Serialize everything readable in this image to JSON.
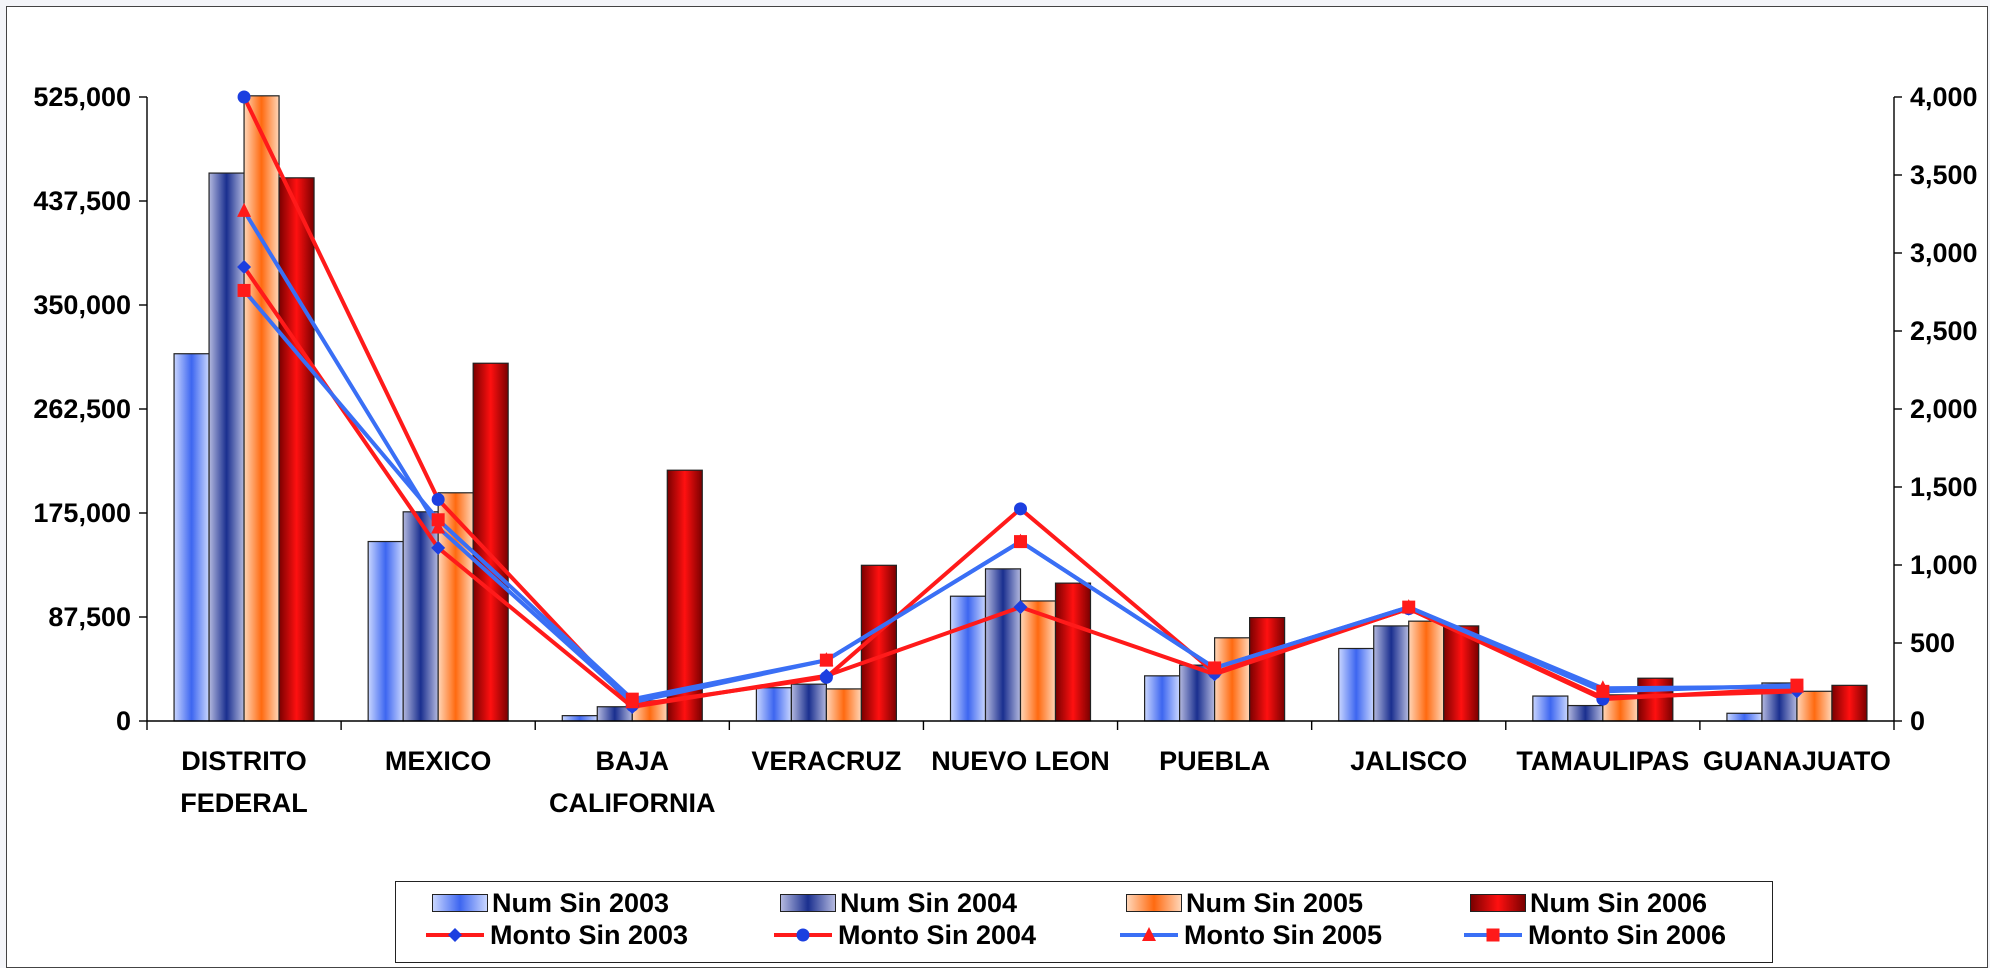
{
  "chart_data": {
    "type": "bar",
    "categories": [
      "DISTRITO FEDERAL",
      "MEXICO",
      "BAJA CALIFORNIA",
      "VERACRUZ",
      "NUEVO LEON",
      "PUEBLA",
      "JALISCO",
      "TAMAULIPAS",
      "GUANAJUATO"
    ],
    "category_lines": [
      [
        "DISTRITO",
        "FEDERAL"
      ],
      [
        "MEXICO"
      ],
      [
        "BAJA",
        "CALIFORNIA"
      ],
      [
        "VERACRUZ"
      ],
      [
        "NUEVO LEON"
      ],
      [
        "PUEBLA"
      ],
      [
        "JALISCO"
      ],
      [
        "TAMAULIPAS"
      ],
      [
        "GUANAJUATO"
      ]
    ],
    "y_left": {
      "lim": [
        0,
        525000
      ],
      "ticks": [
        "0",
        "87,500",
        "175,000",
        "262,500",
        "350,000",
        "437,500",
        "525,000"
      ]
    },
    "y_right": {
      "lim": [
        0,
        4000
      ],
      "ticks": [
        "0",
        "500",
        "1,000",
        "1,500",
        "2,000",
        "2,500",
        "3,000",
        "3,500",
        "4,000"
      ]
    },
    "bar_series": [
      {
        "name": "Num Sin 2003",
        "axis": "left",
        "colors": [
          "#3d66f0",
          "#c9d6ff"
        ],
        "values": [
          309000,
          151000,
          4500,
          28000,
          105000,
          38000,
          61000,
          21000,
          6500
        ]
      },
      {
        "name": "Num Sin 2004",
        "axis": "left",
        "colors": [
          "#1a2f8f",
          "#b4b9df"
        ],
        "values": [
          461000,
          176000,
          12000,
          31000,
          128000,
          47000,
          80000,
          13000,
          32000
        ]
      },
      {
        "name": "Num Sin 2005",
        "axis": "left",
        "colors": [
          "#ff6a10",
          "#ffd6b8"
        ],
        "values": [
          526000,
          192000,
          17000,
          27000,
          101000,
          70000,
          84000,
          22000,
          25000
        ]
      },
      {
        "name": "Num Sin 2006",
        "axis": "left",
        "colors": [
          "#ff1010",
          "#7a0000"
        ],
        "values": [
          457000,
          301000,
          211000,
          131000,
          116000,
          87000,
          80000,
          36000,
          30000
        ]
      }
    ],
    "line_series": [
      {
        "name": "Monto Sin 2003",
        "axis": "right",
        "color": "#ff1a1a",
        "marker": "diamond",
        "marker_color": "#1c3fe0",
        "values": [
          2910,
          1110,
          90,
          290,
          730,
          300,
          720,
          150,
          190
        ]
      },
      {
        "name": "Monto Sin 2004",
        "axis": "right",
        "color": "#ff1a1a",
        "marker": "circle",
        "marker_color": "#1c3fe0",
        "values": [
          4000,
          1420,
          100,
          280,
          1360,
          310,
          720,
          140,
          210
        ]
      },
      {
        "name": "Monto Sin 2005",
        "axis": "right",
        "color": "#3a6ff5",
        "marker": "triangle",
        "marker_color": "#ff1a1a",
        "values": [
          3270,
          1240,
          120,
          390,
          1150,
          340,
          730,
          210,
          220
        ]
      },
      {
        "name": "Monto Sin 2006",
        "axis": "right",
        "color": "#3a6ff5",
        "marker": "square",
        "marker_color": "#ff1a1a",
        "values": [
          2760,
          1290,
          140,
          390,
          1150,
          340,
          730,
          190,
          230
        ]
      }
    ],
    "title": "",
    "xlabel": "",
    "ylabel": "",
    "grid": false,
    "legend_position": "bottom"
  }
}
